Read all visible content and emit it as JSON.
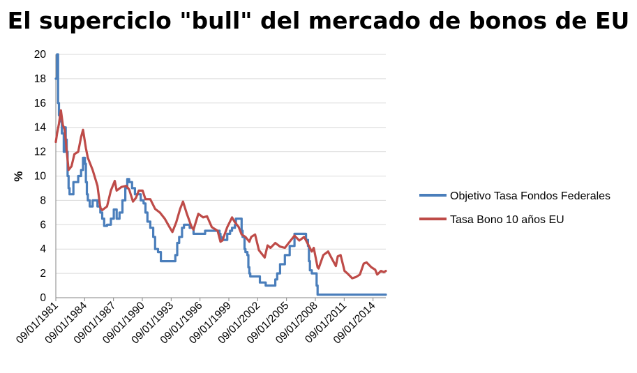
{
  "chart_data": {
    "type": "line",
    "title": "El superciclo \"bull\" del mercado de bonos de EU",
    "ylabel": "%",
    "xlabel": "",
    "ylim": [
      0,
      20
    ],
    "yticks": [
      0,
      2,
      4,
      6,
      8,
      10,
      12,
      14,
      16,
      18,
      20
    ],
    "xlim": [
      1981.67,
      2016.0
    ],
    "xtick_labels": [
      "09/01/1981",
      "09/01/1984",
      "09/01/1987",
      "09/01/1990",
      "09/01/1993",
      "09/01/1996",
      "09/01/1999",
      "09/01/2002",
      "09/01/2005",
      "09/01/2008",
      "09/01/2011",
      "09/01/2014"
    ],
    "xtick_years": [
      1981.67,
      1984.67,
      1987.67,
      1990.67,
      1993.67,
      1996.67,
      1999.67,
      2002.67,
      2005.67,
      2008.67,
      2011.67,
      2014.67
    ],
    "grid": "horizontal",
    "legend_position": "right",
    "colors": {
      "fed": "#4a7ebb",
      "bond": "#be4b48",
      "grid": "#d9d9d9",
      "axis": "#868686"
    },
    "series": [
      {
        "name": "Objetivo Tasa Fondos Federales",
        "color": "#4a7ebb",
        "step": true,
        "x": [
          1981.67,
          1981.8,
          1981.9,
          1982.0,
          1982.1,
          1982.3,
          1982.5,
          1982.6,
          1982.7,
          1982.8,
          1982.9,
          1983.0,
          1983.1,
          1983.5,
          1984.0,
          1984.3,
          1984.5,
          1984.7,
          1984.8,
          1984.9,
          1985.0,
          1985.2,
          1985.5,
          1986.0,
          1986.3,
          1986.5,
          1986.7,
          1987.0,
          1987.4,
          1987.7,
          1988.0,
          1988.3,
          1988.6,
          1988.9,
          1989.1,
          1989.3,
          1989.6,
          1989.9,
          1990.5,
          1990.8,
          1991.0,
          1991.2,
          1991.5,
          1991.8,
          1992.0,
          1992.3,
          1992.6,
          1994.1,
          1994.3,
          1994.5,
          1994.8,
          1995.0,
          1995.6,
          1996.0,
          1997.2,
          1998.7,
          1998.8,
          1998.9,
          1999.5,
          1999.8,
          2000.0,
          2000.3,
          2000.4,
          2001.0,
          2001.1,
          2001.3,
          2001.4,
          2001.6,
          2001.7,
          2001.8,
          2001.9,
          2002.9,
          2003.5,
          2004.5,
          2004.7,
          2005.0,
          2005.5,
          2006.0,
          2006.5,
          2007.7,
          2007.9,
          2008.0,
          2008.1,
          2008.3,
          2008.8,
          2008.9,
          2009.0,
          2016.0
        ],
        "y": [
          18.0,
          20.0,
          16.0,
          15.0,
          14.5,
          13.5,
          12.0,
          14.0,
          13.0,
          12.0,
          10.0,
          9.0,
          8.5,
          9.5,
          10.0,
          10.5,
          11.5,
          11.0,
          9.5,
          8.5,
          8.0,
          7.5,
          8.0,
          7.5,
          7.0,
          6.5,
          5.9,
          6.0,
          6.5,
          7.25,
          6.5,
          7.0,
          8.0,
          9.0,
          9.75,
          9.5,
          9.0,
          8.5,
          8.0,
          7.75,
          7.0,
          6.25,
          5.75,
          5.0,
          4.0,
          3.75,
          3.0,
          3.5,
          4.5,
          5.0,
          5.75,
          6.0,
          5.75,
          5.25,
          5.5,
          5.25,
          5.0,
          4.75,
          5.25,
          5.5,
          5.75,
          6.0,
          6.5,
          5.5,
          5.0,
          4.0,
          3.75,
          3.5,
          2.5,
          2.0,
          1.75,
          1.25,
          1.0,
          1.5,
          2.0,
          2.75,
          3.5,
          4.25,
          5.25,
          4.75,
          4.25,
          3.0,
          2.25,
          2.0,
          1.0,
          0.25,
          0.25,
          0.25
        ]
      },
      {
        "name": "Tasa Bono 10 años EU",
        "color": "#be4b48",
        "step": false,
        "x": [
          1981.67,
          1981.8,
          1982.0,
          1982.2,
          1982.4,
          1982.6,
          1982.75,
          1983.0,
          1983.3,
          1983.6,
          1984.0,
          1984.3,
          1984.5,
          1984.8,
          1985.0,
          1985.5,
          1986.0,
          1986.3,
          1986.5,
          1987.0,
          1987.4,
          1987.8,
          1988.0,
          1988.5,
          1989.0,
          1989.3,
          1989.7,
          1990.0,
          1990.3,
          1990.7,
          1991.0,
          1991.5,
          1992.0,
          1992.5,
          1993.0,
          1993.5,
          1993.8,
          1994.2,
          1994.6,
          1994.9,
          1995.3,
          1995.8,
          1996.0,
          1996.5,
          1997.0,
          1997.4,
          1997.9,
          1998.5,
          1998.8,
          1999.0,
          1999.5,
          2000.0,
          2000.3,
          2000.7,
          2001.0,
          2001.4,
          2001.8,
          2002.0,
          2002.4,
          2002.8,
          2003.4,
          2003.7,
          2004.0,
          2004.5,
          2005.0,
          2005.5,
          2006.0,
          2006.5,
          2007.0,
          2007.5,
          2007.9,
          2008.3,
          2008.5,
          2008.9,
          2009.0,
          2009.5,
          2010.0,
          2010.4,
          2010.8,
          2011.0,
          2011.3,
          2011.7,
          2012.0,
          2012.5,
          2012.9,
          2013.3,
          2013.7,
          2014.0,
          2014.5,
          2014.9,
          2015.1,
          2015.5,
          2015.8,
          2016.0
        ],
        "y": [
          12.8,
          13.5,
          14.3,
          15.4,
          14.2,
          13.8,
          12.5,
          10.5,
          10.8,
          11.8,
          12.0,
          13.2,
          13.8,
          12.3,
          11.5,
          10.5,
          9.2,
          7.4,
          7.2,
          7.5,
          8.8,
          9.6,
          8.8,
          9.1,
          9.2,
          8.9,
          7.9,
          8.2,
          8.8,
          8.8,
          8.1,
          8.1,
          7.3,
          7.0,
          6.5,
          5.8,
          5.4,
          6.2,
          7.3,
          7.9,
          6.9,
          5.8,
          5.6,
          6.9,
          6.6,
          6.7,
          5.8,
          5.5,
          4.6,
          4.7,
          5.8,
          6.6,
          6.2,
          5.8,
          5.2,
          5.0,
          4.6,
          5.0,
          5.2,
          3.9,
          3.3,
          4.3,
          4.1,
          4.5,
          4.2,
          4.1,
          4.6,
          5.1,
          4.7,
          5.0,
          4.4,
          3.8,
          4.1,
          2.5,
          2.4,
          3.5,
          3.8,
          3.2,
          2.6,
          3.4,
          3.5,
          2.2,
          2.0,
          1.6,
          1.7,
          1.9,
          2.8,
          2.9,
          2.5,
          2.3,
          1.9,
          2.2,
          2.1,
          2.2
        ]
      }
    ]
  }
}
